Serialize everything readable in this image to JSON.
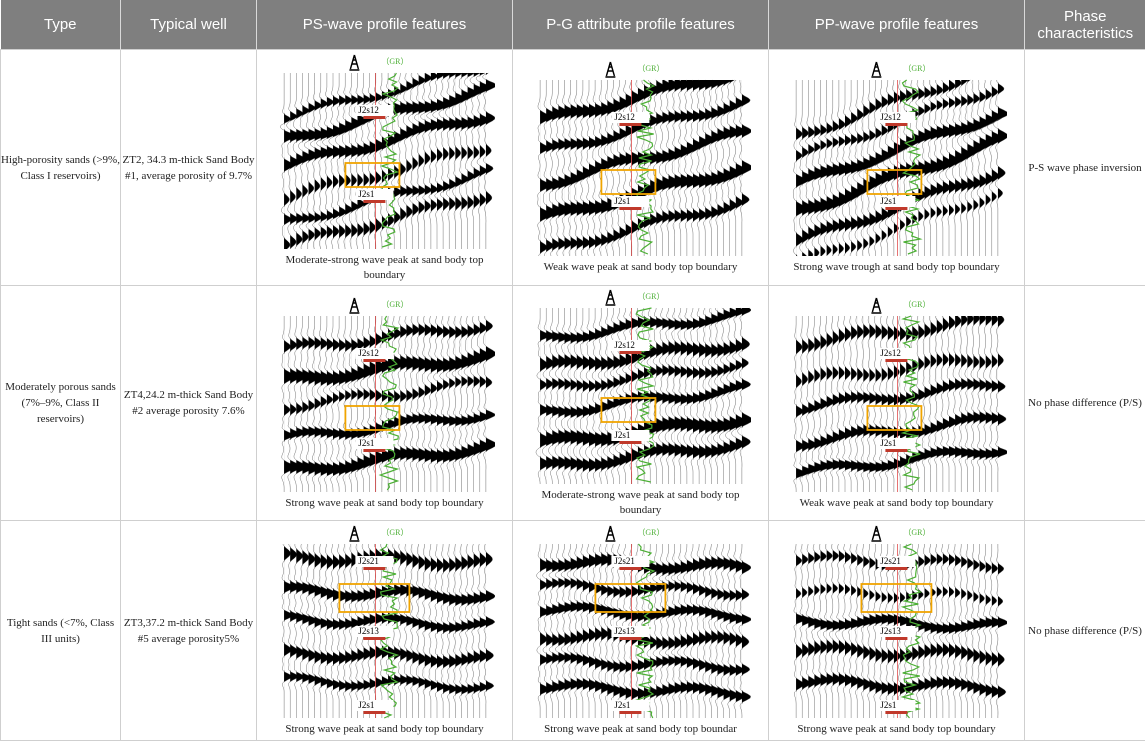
{
  "headers": [
    "Type",
    "Typical well",
    "PS-wave profile features",
    "P-G attribute profile features",
    "PP-wave profile features",
    "Phase characteristics"
  ],
  "gr_label": "（GR）",
  "colors": {
    "header_bg": "#7f7f7f",
    "trace": "#000000",
    "gr": "#4caf35",
    "box": "#f0a400",
    "marker": "#c0392b"
  },
  "rows": [
    {
      "type": "High-porosity sands (>9%, Class I reservoirs)",
      "well": "ZT2, 34.3 m-thick Sand Body #1, average porosity of 9.7%",
      "phase": "P-S wave phase inversion",
      "top_label": "J2s12",
      "bottom_label": "J2s1",
      "panels": [
        {
          "caption": "Moderate-strong wave peak at sand body top boundary"
        },
        {
          "caption": "Weak wave peak at sand body top boundary"
        },
        {
          "caption": "Strong wave trough at sand body top boundary"
        }
      ]
    },
    {
      "type": "Moderately porous sands (7%–9%, Class II reservoirs)",
      "well": "ZT4,24.2 m-thick Sand Body #2 average porosity 7.6%",
      "phase": "No phase difference (P/S)",
      "top_label": "J2s12",
      "bottom_label": "J2s1",
      "panels": [
        {
          "caption": "Strong wave peak at sand body top boundary"
        },
        {
          "caption": "Moderate-strong wave peak at sand body top boundary"
        },
        {
          "caption": "Weak wave peak at sand body top boundary"
        }
      ]
    },
    {
      "type": "Tight sands (<7%, Class III units)",
      "well": "ZT3,37.2 m-thick Sand Body #5 average porosity5%",
      "phase": "No phase difference (P/S)",
      "top_label": "J2s21",
      "mid_label": "J2s13",
      "bottom_label": "J2s1",
      "panels": [
        {
          "caption": "Strong wave peak at sand body top boundary"
        },
        {
          "caption": "Strong wave peak at sand body top boundar"
        },
        {
          "caption": "Strong wave peak at sand body top boundary"
        }
      ]
    }
  ]
}
